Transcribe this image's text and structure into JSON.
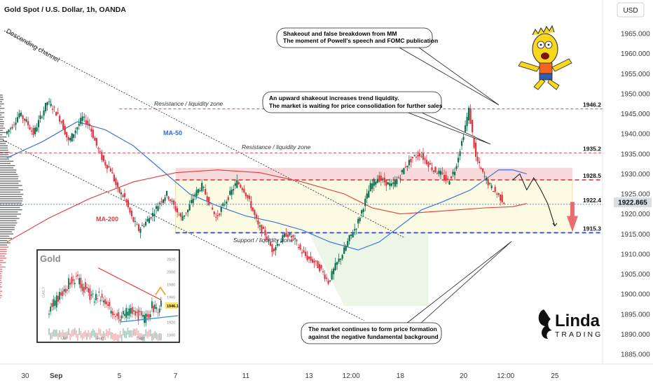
{
  "header": {
    "symbol_title": "Gold Spot / U.S. Dollar, 1h, OANDA",
    "currency_button": "USD"
  },
  "colors": {
    "bull": "#0b6e4f",
    "bear": "#e2333f",
    "ma50": "#2d6bd9",
    "ma200": "#e43b3b",
    "resistance": "#e0454f",
    "support": "#2b45d6",
    "zone_fill": "#f6d2d6",
    "box_fill": "#fbfbe4",
    "green_fill": "#e6f4e0"
  },
  "chart_data": {
    "type": "candlestick",
    "title": "Gold Spot / U.S. Dollar, 1h, OANDA",
    "ylim": [
      1881,
      1972
    ],
    "y_ticks": [
      "1965.000",
      "1960.000",
      "1955.000",
      "1950.000",
      "1945.000",
      "1940.000",
      "1935.000",
      "1930.000",
      "1925.000",
      "1920.000",
      "1915.000",
      "1910.000",
      "1905.000",
      "1900.000",
      "1895.000",
      "1890.000",
      "1885.000"
    ],
    "y_tick_values": [
      1965,
      1960,
      1955,
      1950,
      1945,
      1940,
      1935,
      1930,
      1925,
      1920,
      1915,
      1910,
      1905,
      1900,
      1895,
      1890,
      1885
    ],
    "x_ticks": [
      "30",
      "Sep",
      "5",
      "7",
      "11",
      "13",
      "12:00",
      "18",
      "20",
      "12:00",
      "25"
    ],
    "x_tick_values": [
      0,
      7,
      16,
      24,
      34,
      43,
      49,
      56,
      65,
      71,
      78
    ],
    "last_price": "1922.865",
    "last_price_value": 1922.865,
    "levels": [
      {
        "label": "1946.2",
        "value": 1946.2
      },
      {
        "label": "1935.2",
        "value": 1935.2
      },
      {
        "label": "1928.5",
        "value": 1928.5
      },
      {
        "label": "1922.4",
        "value": 1922.4
      },
      {
        "label": "1915.3",
        "value": 1915.3
      }
    ],
    "price_path": [
      1940,
      1942,
      1945,
      1943,
      1940,
      1944,
      1948,
      1946,
      1943,
      1938,
      1941,
      1944,
      1942,
      1937,
      1933,
      1931,
      1926,
      1924,
      1919,
      1916,
      1918,
      1920,
      1923,
      1925,
      1922,
      1919,
      1921,
      1925,
      1927,
      1923,
      1919,
      1922,
      1925,
      1928,
      1926,
      1922,
      1917,
      1915,
      1911,
      1913,
      1915,
      1914,
      1911,
      1909,
      1908,
      1906,
      1903,
      1907,
      1910,
      1914,
      1917,
      1922,
      1927,
      1929,
      1928,
      1927,
      1929,
      1932,
      1934,
      1935,
      1933,
      1931,
      1930,
      1928,
      1931,
      1938,
      1946,
      1934,
      1930,
      1927,
      1925,
      1923
    ],
    "ma50": [
      [
        0,
        1934
      ],
      [
        5,
        1938
      ],
      [
        10,
        1943
      ],
      [
        14,
        1941
      ],
      [
        18,
        1937
      ],
      [
        22,
        1931
      ],
      [
        26,
        1925
      ],
      [
        30,
        1922
      ],
      [
        34,
        1919.5
      ],
      [
        38,
        1918
      ],
      [
        42,
        1916
      ],
      [
        46,
        1913
      ],
      [
        50,
        1911
      ],
      [
        53,
        1913
      ],
      [
        56,
        1917
      ],
      [
        59,
        1921
      ],
      [
        62,
        1923
      ],
      [
        66,
        1926
      ],
      [
        70,
        1931
      ],
      [
        72,
        1931
      ],
      [
        74,
        1930
      ]
    ],
    "ma200": [
      [
        0,
        1913
      ],
      [
        6,
        1919
      ],
      [
        12,
        1924
      ],
      [
        18,
        1928
      ],
      [
        24,
        1930.3
      ],
      [
        30,
        1931
      ],
      [
        36,
        1930.3
      ],
      [
        42,
        1928
      ],
      [
        48,
        1925
      ],
      [
        52,
        1921.5
      ],
      [
        56,
        1920
      ],
      [
        60,
        1920.5
      ],
      [
        64,
        1921
      ],
      [
        68,
        1921.5
      ],
      [
        72,
        1921.8
      ],
      [
        74,
        1922.6
      ]
    ],
    "projection": [
      [
        72,
        1928.5
      ],
      [
        73,
        1930
      ],
      [
        74,
        1926
      ],
      [
        75,
        1929
      ],
      [
        76,
        1926
      ],
      [
        77,
        1922.5
      ],
      [
        78,
        1917
      ]
    ],
    "channel_top_label": "Descending channel",
    "ma50_label": "MA-50",
    "ma200_label": "MA-200",
    "zone_labels": {
      "res_top": "Resistance / liquidity zone",
      "res_mid": "Resistance / liquidity zone",
      "support": "Support / liquidity zone"
    },
    "annotations": [
      {
        "lines": [
          "Shakeout and false breakdown from MM",
          "The moment of Powell's speech and FOMC publication"
        ]
      },
      {
        "lines": [
          "An upward shakeout increases trend liquidity.",
          "The market is waiting for price consolidation for further sales"
        ]
      },
      {
        "lines": [
          "The market continues to form price formation",
          "against the negative fundamental background"
        ]
      }
    ],
    "inset": {
      "title": "Gold",
      "axis_label": "DAILY",
      "y_ticks": [
        "2020",
        "2000",
        "1980",
        "1960",
        "1946.1",
        "1920",
        "1900"
      ],
      "x_ticks": [
        "Jul",
        "Aug",
        "Sep"
      ],
      "price_tag": "1946.1"
    }
  },
  "logo": {
    "line1": "Linda",
    "line2": "TRADING"
  }
}
